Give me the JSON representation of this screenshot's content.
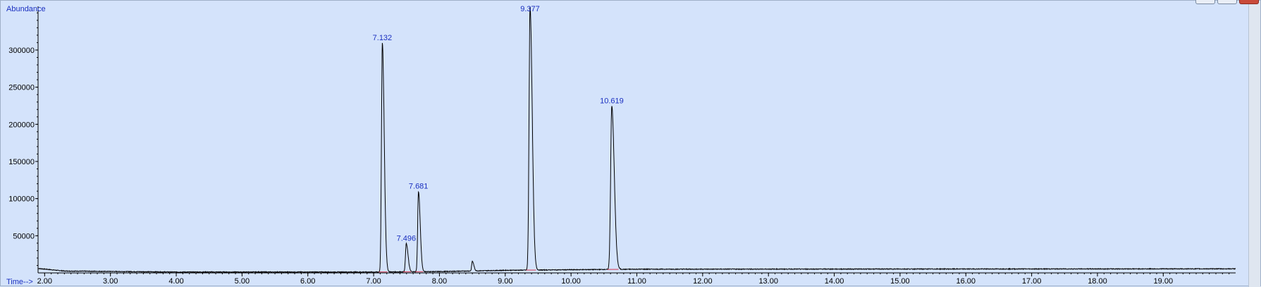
{
  "window": {
    "buttons": [
      "minimize-button",
      "restore-button",
      "close-button"
    ]
  },
  "colors": {
    "background": "#d4e3fb",
    "trace": "#000000",
    "peak_label": "#1a2fc0",
    "baseline_mark": "#d0354b"
  },
  "chart_data": {
    "type": "line",
    "ylabel": "Abundance",
    "xlabel": "Time-->",
    "xlim": [
      1.9,
      20.1
    ],
    "ylim": [
      0,
      355000
    ],
    "x_ticks": [
      "2.00",
      "3.00",
      "4.00",
      "5.00",
      "6.00",
      "7.00",
      "8.00",
      "9.00",
      "10.00",
      "11.00",
      "12.00",
      "13.00",
      "14.00",
      "15.00",
      "16.00",
      "17.00",
      "18.00",
      "19.00"
    ],
    "y_ticks": [
      "50000",
      "100000",
      "150000",
      "200000",
      "250000",
      "300000"
    ],
    "grid": false,
    "peaks": [
      {
        "rt": 7.132,
        "label": "7.132",
        "height": 308000,
        "width": 0.013
      },
      {
        "rt": 7.496,
        "label": "7.496",
        "height": 38000,
        "width": 0.012
      },
      {
        "rt": 7.681,
        "label": "7.681",
        "height": 108000,
        "width": 0.012
      },
      {
        "rt": 8.5,
        "label": "",
        "height": 13000,
        "width": 0.01
      },
      {
        "rt": 9.377,
        "label": "9.377",
        "height": 355000,
        "width": 0.015
      },
      {
        "rt": 10.619,
        "label": "10.619",
        "height": 220000,
        "width": 0.017
      }
    ],
    "baseline": [
      {
        "x": 1.9,
        "y": 6000
      },
      {
        "x": 2.3,
        "y": 2500
      },
      {
        "x": 4.0,
        "y": 1200
      },
      {
        "x": 7.0,
        "y": 1200
      },
      {
        "x": 8.0,
        "y": 1800
      },
      {
        "x": 9.0,
        "y": 3500
      },
      {
        "x": 11.0,
        "y": 5000
      },
      {
        "x": 20.1,
        "y": 5500
      }
    ]
  }
}
